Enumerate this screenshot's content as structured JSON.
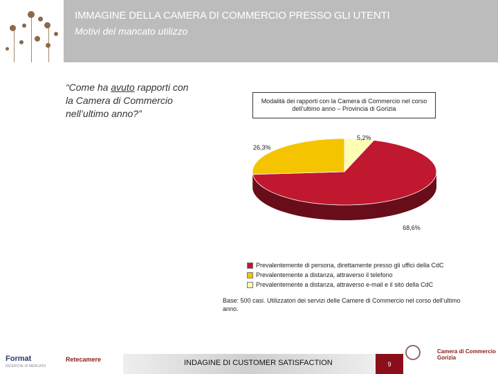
{
  "header": {
    "title": "IMMAGINE DELLA CAMERA DI COMMERCIO PRESSO GLI UTENTI",
    "subtitle": "Motivi del mancato utilizzo"
  },
  "question": {
    "part1": "“Come ha ",
    "underlined": "avuto",
    "part2": " rapporti con la Camera di Commercio nell’ultimo anno?”"
  },
  "chart_data": {
    "type": "pie",
    "title": "Modalità dei rapporti con la Camera di Commercio nel corso dell’ultimo anno – Provincia di Gorizia",
    "slices": [
      {
        "label": "Prevalentemente di persona, direttamente presso gli uffici della CdC",
        "value": 68.6,
        "display": "68,6%",
        "color": "#c0182f"
      },
      {
        "label": "Prevalentemente a distanza, attraverso il telefono",
        "value": 26.3,
        "display": "26,3%",
        "color": "#f5c400"
      },
      {
        "label": "Prevalentemente a distanza, attraverso e-mail e il sito della CdC",
        "value": 5.2,
        "display": "5,2%",
        "color": "#fdfdb4"
      }
    ],
    "legend_position": "bottom"
  },
  "base_note": "Base: 500 casi. Utilizzatori dei servizi delle Camere di Commercio nel corso dell’ultimo anno.",
  "footer": {
    "logo_left": "Format",
    "logo_left_sub": "RICERCHE DI MERCATO",
    "retecamere": "Retecamere",
    "center_text": "INDAGINE DI CUSTOMER SATISFACTION",
    "page_number": "9",
    "cdc_line1": "Camera di Commercio",
    "cdc_line2": "Gorizia"
  }
}
